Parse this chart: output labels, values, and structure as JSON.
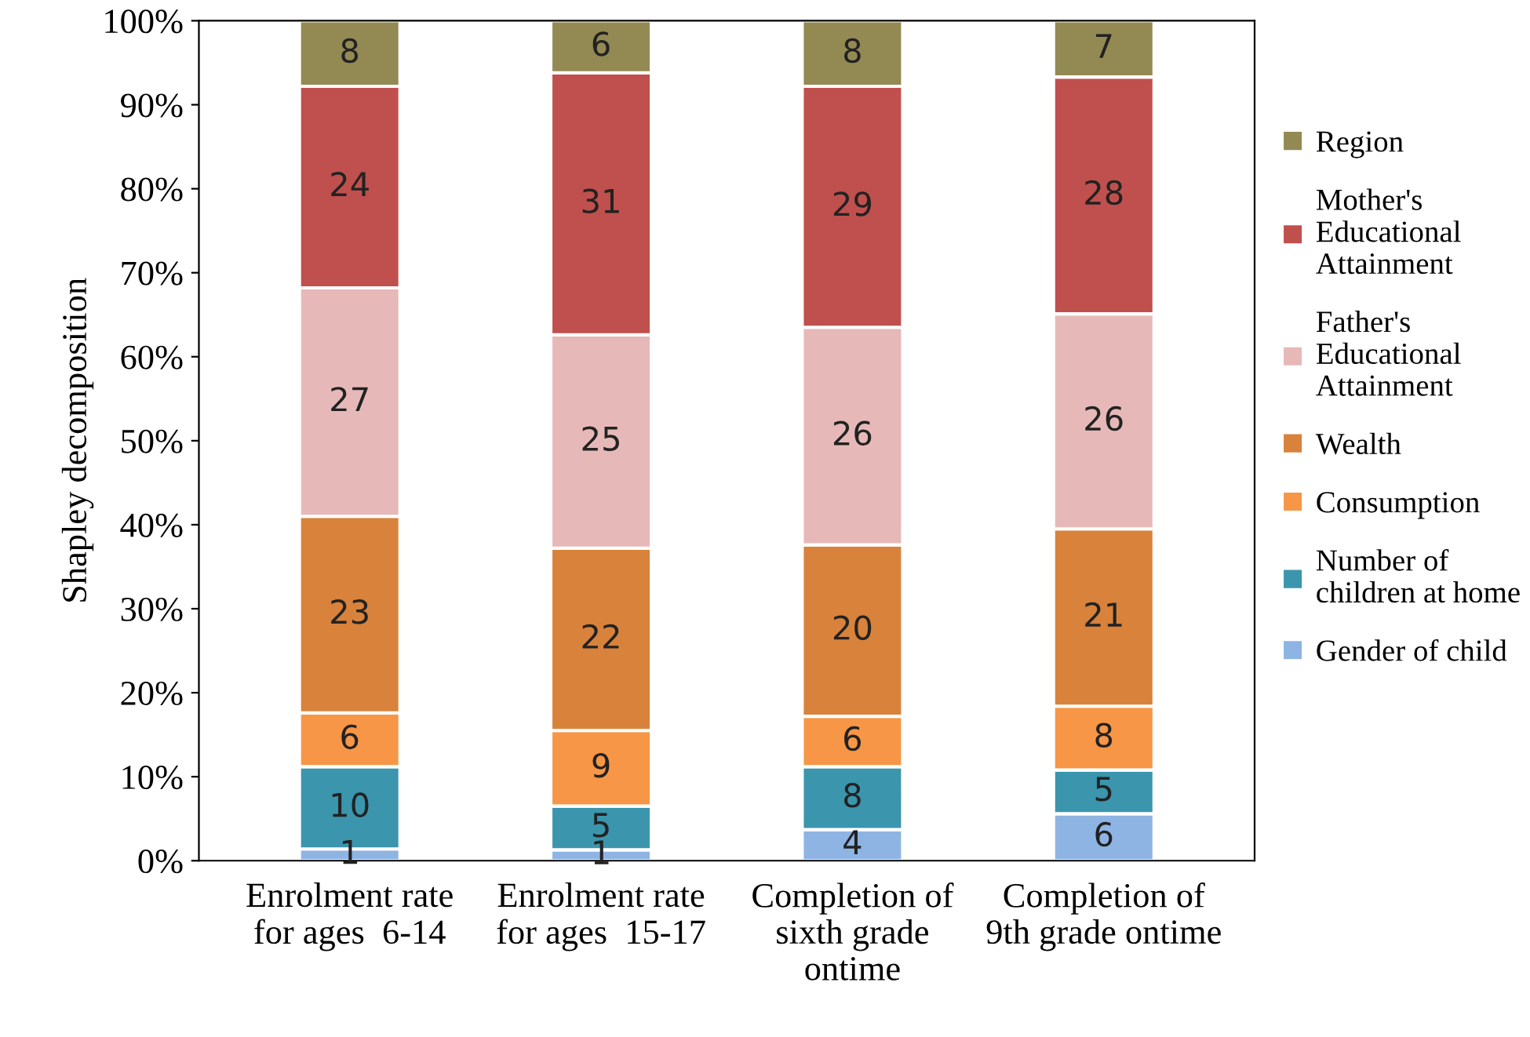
{
  "chart_data": {
    "type": "bar",
    "stacked": true,
    "ylabel": "Shapley decomposition",
    "categories": [
      "Enrolment rate\nfor ages  6-14",
      "Enrolment rate\nfor ages  15-17",
      "Completion of\nsixth grade\nontime",
      "Completion of\n9th grade ontime"
    ],
    "series": [
      {
        "name": "Gender of child",
        "color": "#8eb4e3",
        "values": [
          1.4,
          1.3,
          3.7,
          5.6
        ],
        "value_labels": [
          "1",
          "1",
          "4",
          "6"
        ]
      },
      {
        "name": "Number of\nchildren at home",
        "color": "#3b95ad",
        "values": [
          9.8,
          5.2,
          7.5,
          5.2
        ],
        "value_labels": [
          "10",
          "5",
          "8",
          "5"
        ]
      },
      {
        "name": "Consumption",
        "color": "#f79646",
        "values": [
          6.4,
          9.0,
          6.0,
          7.6
        ],
        "value_labels": [
          "6",
          "9",
          "6",
          "8"
        ]
      },
      {
        "name": "Wealth",
        "color": "#d8823b",
        "values": [
          23.4,
          21.7,
          20.4,
          21.1
        ],
        "value_labels": [
          "23",
          "22",
          "20",
          "21"
        ]
      },
      {
        "name": "Father's\nEducational\nAttainment",
        "color": "#e6b9b8",
        "values": [
          27.2,
          25.4,
          25.9,
          25.6
        ],
        "value_labels": [
          "27",
          "25",
          "26",
          "26"
        ]
      },
      {
        "name": "Mother's\nEducational\nAttainment",
        "color": "#c0504d",
        "values": [
          24.0,
          31.2,
          28.7,
          28.2
        ],
        "value_labels": [
          "24",
          "31",
          "29",
          "28"
        ]
      },
      {
        "name": "Region",
        "color": "#938953",
        "values": [
          7.8,
          6.2,
          7.8,
          6.7
        ],
        "value_labels": [
          "8",
          "6",
          "8",
          "7"
        ]
      }
    ],
    "ylim": [
      0,
      100
    ],
    "yticks": [
      {
        "value": 0,
        "label": "0%"
      },
      {
        "value": 10,
        "label": "10%"
      },
      {
        "value": 20,
        "label": "20%"
      },
      {
        "value": 30,
        "label": "30%"
      },
      {
        "value": 40,
        "label": "40%"
      },
      {
        "value": 50,
        "label": "50%"
      },
      {
        "value": 60,
        "label": "60%"
      },
      {
        "value": 70,
        "label": "70%"
      },
      {
        "value": 80,
        "label": "80%"
      },
      {
        "value": 90,
        "label": "90%"
      },
      {
        "value": 100,
        "label": "100%"
      }
    ],
    "grid": false,
    "legend": "right"
  }
}
